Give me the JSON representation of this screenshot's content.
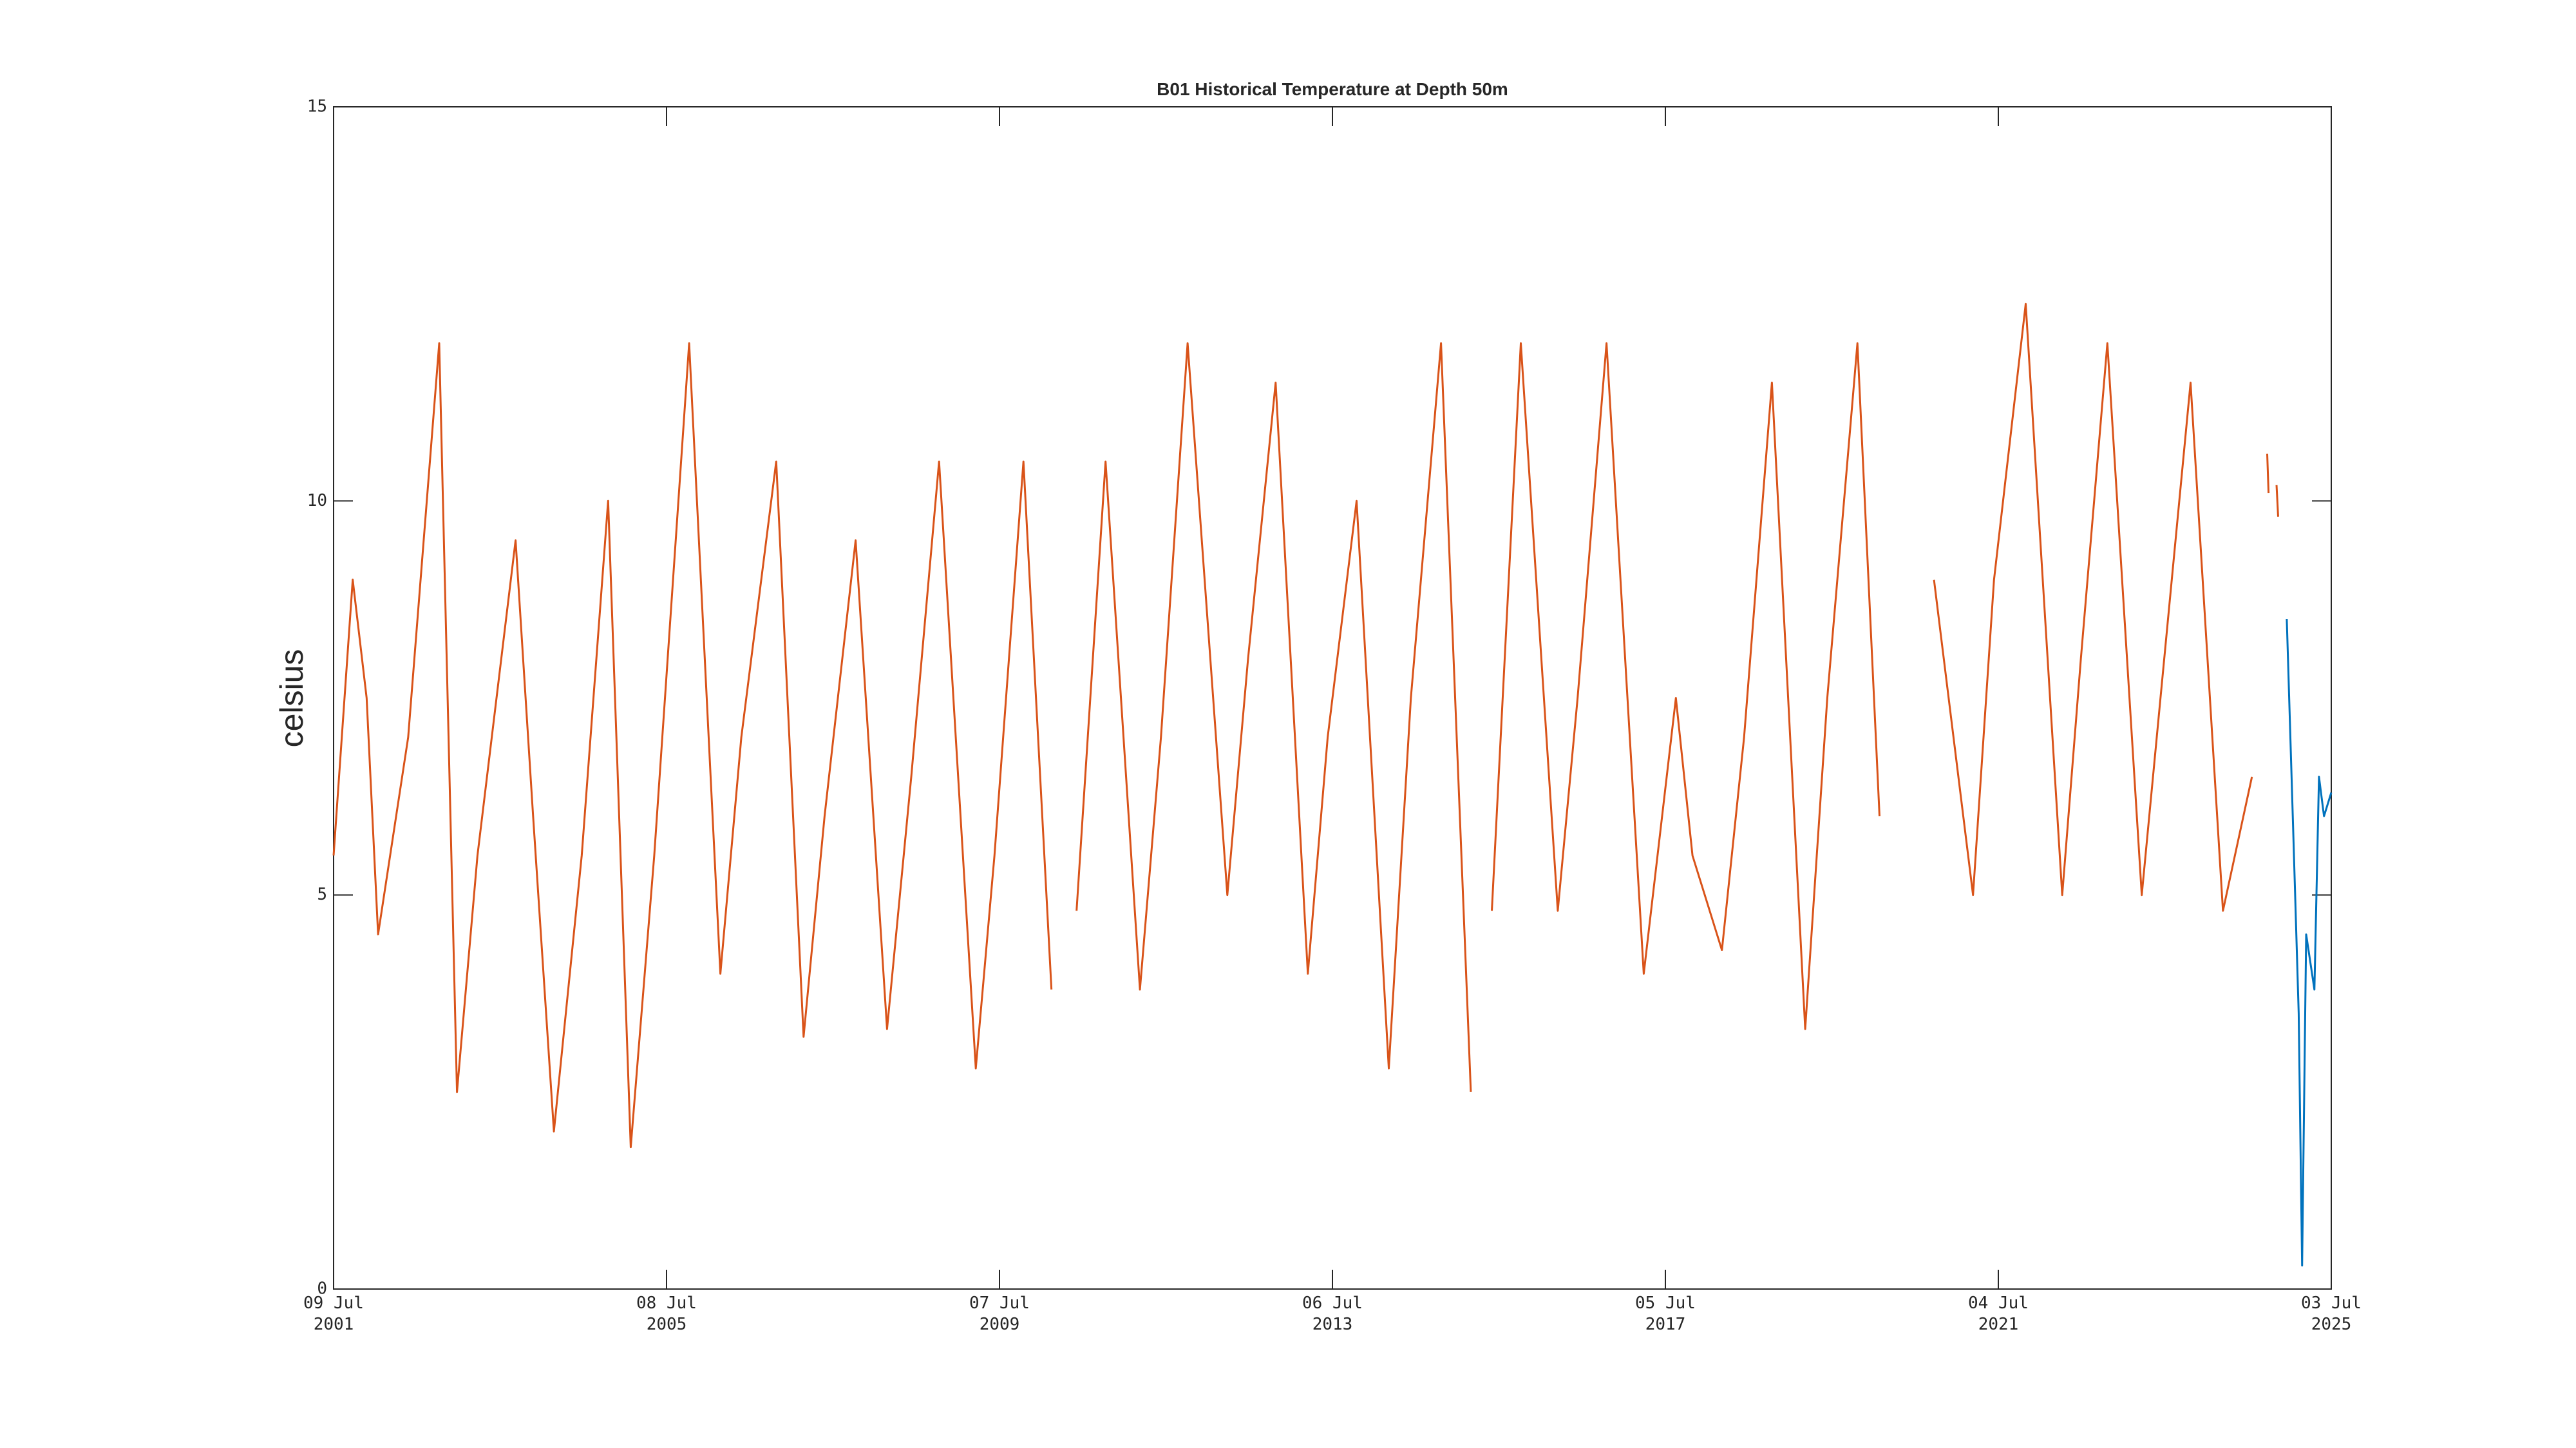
{
  "chart_data": {
    "type": "line",
    "title": "B01 Historical Temperature at Depth 50m",
    "y_label": "celsius",
    "xlim": [
      "2001-07-09",
      "2025-07-03"
    ],
    "xticks": [
      {
        "value": "2001-07-09",
        "label": [
          "09 Jul",
          "2001"
        ]
      },
      {
        "value": "2005-07-08",
        "label": [
          "08 Jul",
          "2005"
        ]
      },
      {
        "value": "2009-07-07",
        "label": [
          "07 Jul",
          "2009"
        ]
      },
      {
        "value": "2013-07-06",
        "label": [
          "06 Jul",
          "2013"
        ]
      },
      {
        "value": "2017-07-05",
        "label": [
          "05 Jul",
          "2017"
        ]
      },
      {
        "value": "2021-07-04",
        "label": [
          "04 Jul",
          "2021"
        ]
      },
      {
        "value": "2025-07-03",
        "label": [
          "03 Jul",
          "2025"
        ]
      }
    ],
    "ylim": [
      0,
      15
    ],
    "yticks": [
      0,
      5,
      10,
      15
    ],
    "grid": false,
    "series": [
      {
        "color": "#d95319",
        "x": [
          "2001-07-09",
          "2001-10-01",
          "2001-12-01",
          "2002-01-20",
          "2002-06-01",
          "2002-10-15",
          "2003-01-01",
          "2003-04-01",
          "2003-09-15",
          "2003-12-01",
          "2004-03-01",
          "2004-07-01",
          "2004-10-25",
          "2005-02-01",
          "2005-05-15",
          "2005-10-15",
          "2006-03-01",
          "2006-06-01",
          "2006-11-01",
          "2007-03-01",
          "2007-06-01",
          "2007-10-15",
          "2008-03-01",
          "2008-06-15",
          "2008-10-15",
          "2009-03-25",
          "2009-06-15",
          "2009-10-20",
          "2010-02-20",
          "2010-04-01",
          "2010-06-10",
          "2010-10-15",
          "2011-03-15",
          "2011-06-15",
          "2011-10-10",
          "2012-04-01",
          "2012-07-01",
          "2012-10-30",
          "2013-03-20",
          "2013-06-15",
          "2013-10-20",
          "2014-03-10",
          "2014-06-15",
          "2014-10-25",
          "2015-03-05",
          "2015-04-15",
          "2015-06-05",
          "2015-10-10",
          "2016-03-20",
          "2016-06-15",
          "2016-10-20",
          "2017-04-01",
          "2017-08-20",
          "2017-11-01",
          "2018-03-10",
          "2018-06-15",
          "2018-10-15",
          "2019-03-10",
          "2019-06-15",
          "2019-10-25",
          "2020-01-30",
          "2020-06-01",
          "2020-09-25",
          "2021-03-15",
          "2021-06-15",
          "2021-11-01",
          "2022-04-10",
          "2022-07-01",
          "2022-10-25",
          "2023-03-25",
          "2023-06-15",
          "2023-10-25",
          "2024-03-15",
          "2024-07-20",
          "2024-08-20",
          "2024-09-25",
          "2024-10-01",
          "2024-10-20",
          "2024-11-05",
          "2024-11-12"
        ],
        "values": [
          5.5,
          9.0,
          7.5,
          4.5,
          7.0,
          12.0,
          2.5,
          5.5,
          9.5,
          6.0,
          2.0,
          5.5,
          10.0,
          1.8,
          5.5,
          12.0,
          4.0,
          7.0,
          10.5,
          3.2,
          6.0,
          9.5,
          3.3,
          6.5,
          10.5,
          2.8,
          5.5,
          10.5,
          3.8,
          null,
          4.8,
          10.5,
          3.8,
          7.0,
          12.0,
          5.0,
          8.0,
          11.5,
          4.0,
          7.0,
          10.0,
          2.8,
          7.5,
          12.0,
          2.5,
          null,
          4.8,
          12.0,
          4.8,
          7.5,
          12.0,
          4.0,
          7.5,
          5.5,
          4.3,
          7.0,
          11.5,
          3.3,
          7.5,
          12.0,
          6.0,
          null,
          9.0,
          5.0,
          9.0,
          12.5,
          5.0,
          8.0,
          12.0,
          5.0,
          7.5,
          11.5,
          4.8,
          6.5,
          null,
          10.6,
          10.1,
          null,
          10.2,
          9.8
        ]
      },
      {
        "color": "#0072bd",
        "x": [
          "2024-12-20",
          "2025-01-15",
          "2025-02-10",
          "2025-02-25",
          "2025-03-15",
          "2025-04-20",
          "2025-05-10",
          "2025-06-01",
          "2025-07-03"
        ],
        "values": [
          8.5,
          6.0,
          3.5,
          0.3,
          4.5,
          3.8,
          6.5,
          6.0,
          6.3
        ]
      }
    ]
  }
}
